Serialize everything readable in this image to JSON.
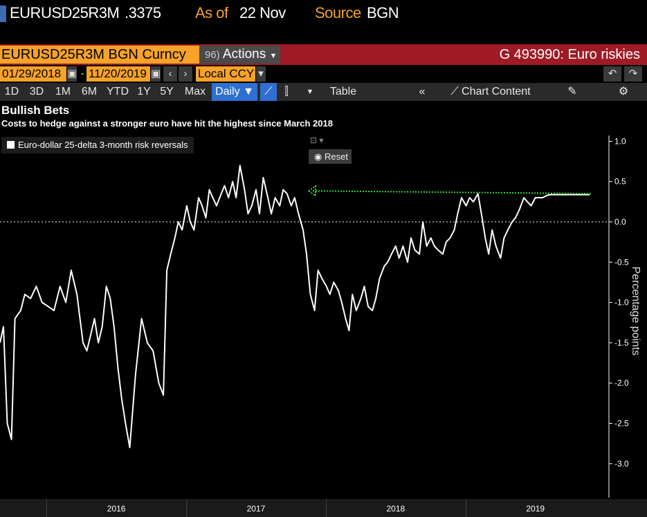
{
  "topbar": {
    "ticker": "EURUSD25R3M",
    "value": ".3375",
    "asof_label": "As of",
    "asof_date": "22 Nov",
    "source_label": "Source",
    "source": "BGN"
  },
  "header": {
    "security": "EURUSD25R3M BGN Curncy",
    "actions_label": "Actions",
    "actions_prefix": "96)",
    "graph_title": "G 493990: Euro riskies"
  },
  "dates": {
    "start": "01/29/2018",
    "end": "11/20/2019",
    "currency": "Local CCY"
  },
  "toolbar": {
    "ranges": [
      "1D",
      "3D",
      "1M",
      "6M",
      "YTD",
      "1Y",
      "5Y",
      "Max"
    ],
    "period": "Daily ▼",
    "table_label": "Table",
    "chart_content_label": "Chart Content",
    "reset_label": "Reset"
  },
  "colors": {
    "orange": "#f7a229",
    "red": "#9e1b25",
    "blue": "#2f6fd3",
    "line": "#ffffff",
    "marker": "#33dd33"
  },
  "chart_data": {
    "type": "line",
    "title": "Bullish Bets",
    "subtitle": "Costs to hedge against a stronger euro have hit the highest since March 2018",
    "ylabel": "Percentage points",
    "xlabel": "",
    "x_ticks": [
      "2016",
      "2017",
      "2018",
      "2019"
    ],
    "ylim": [
      -3.0,
      1.0
    ],
    "y_ticks": [
      1.0,
      0.5,
      0.0,
      -0.5,
      -1.0,
      -1.5,
      -2.0,
      -2.5,
      -3.0
    ],
    "series": [
      {
        "name": "Euro-dollar 25-delta 3-month risk reversals",
        "x": [
          "2015-09-01",
          "2015-09-10",
          "2015-09-20",
          "2015-10-01",
          "2015-10-10",
          "2015-10-25",
          "2015-11-05",
          "2015-11-20",
          "2015-12-05",
          "2015-12-20",
          "2016-01-05",
          "2016-01-20",
          "2016-02-05",
          "2016-02-20",
          "2016-03-05",
          "2016-03-20",
          "2016-04-05",
          "2016-04-15",
          "2016-04-25",
          "2016-05-05",
          "2016-05-15",
          "2016-05-25",
          "2016-06-05",
          "2016-06-15",
          "2016-06-25",
          "2016-07-05",
          "2016-07-15",
          "2016-07-25",
          "2016-08-05",
          "2016-08-20",
          "2016-09-05",
          "2016-09-20",
          "2016-10-05",
          "2016-10-20",
          "2016-11-01",
          "2016-11-10",
          "2016-11-20",
          "2016-12-01",
          "2016-12-10",
          "2016-12-20",
          "2017-01-01",
          "2017-01-10",
          "2017-01-20",
          "2017-02-01",
          "2017-02-10",
          "2017-02-20",
          "2017-03-01",
          "2017-03-10",
          "2017-03-20",
          "2017-04-01",
          "2017-04-10",
          "2017-04-20",
          "2017-05-01",
          "2017-05-10",
          "2017-05-20",
          "2017-06-01",
          "2017-06-10",
          "2017-06-20",
          "2017-07-01",
          "2017-07-10",
          "2017-07-20",
          "2017-08-01",
          "2017-08-10",
          "2017-08-20",
          "2017-09-01",
          "2017-09-10",
          "2017-09-20",
          "2017-10-01",
          "2017-10-10",
          "2017-10-20",
          "2017-11-01",
          "2017-11-10",
          "2017-11-20",
          "2017-12-01",
          "2017-12-10",
          "2017-12-20",
          "2018-01-01",
          "2018-01-10",
          "2018-01-20",
          "2018-02-01",
          "2018-02-10",
          "2018-02-20",
          "2018-03-01",
          "2018-03-10",
          "2018-03-20",
          "2018-04-01",
          "2018-04-10",
          "2018-04-20",
          "2018-05-01",
          "2018-05-10",
          "2018-05-20",
          "2018-06-01",
          "2018-06-10",
          "2018-06-20",
          "2018-07-01",
          "2018-07-10",
          "2018-07-20",
          "2018-08-01",
          "2018-08-10",
          "2018-08-20",
          "2018-09-01",
          "2018-09-10",
          "2018-09-20",
          "2018-10-01",
          "2018-10-10",
          "2018-10-20",
          "2018-11-01",
          "2018-11-10",
          "2018-11-20",
          "2018-12-01",
          "2018-12-10",
          "2018-12-20",
          "2019-01-01",
          "2019-01-10",
          "2019-01-20",
          "2019-02-01",
          "2019-02-10",
          "2019-02-20",
          "2019-03-01",
          "2019-03-10",
          "2019-03-20",
          "2019-04-01",
          "2019-04-10",
          "2019-04-20",
          "2019-05-01",
          "2019-05-10",
          "2019-05-20",
          "2019-06-01",
          "2019-06-10",
          "2019-06-20",
          "2019-07-01",
          "2019-07-10",
          "2019-07-20",
          "2019-08-01",
          "2019-08-10",
          "2019-08-20",
          "2019-09-01",
          "2019-09-10",
          "2019-09-20",
          "2019-10-01",
          "2019-10-10",
          "2019-10-20",
          "2019-11-01",
          "2019-11-10",
          "2019-11-20"
        ],
        "values": [
          -1.5,
          -1.3,
          -2.5,
          -2.7,
          -1.2,
          -1.1,
          -0.9,
          -0.95,
          -0.8,
          -1.0,
          -1.05,
          -1.1,
          -0.8,
          -1.0,
          -0.6,
          -0.9,
          -1.5,
          -1.6,
          -1.4,
          -1.2,
          -1.5,
          -1.3,
          -0.8,
          -0.95,
          -1.3,
          -1.8,
          -2.2,
          -2.5,
          -2.8,
          -1.9,
          -1.2,
          -1.5,
          -1.6,
          -2.0,
          -2.15,
          -0.6,
          -0.4,
          -0.2,
          0.0,
          -0.1,
          0.2,
          0.0,
          -0.1,
          0.3,
          0.2,
          0.05,
          0.4,
          0.3,
          0.2,
          0.35,
          0.45,
          0.3,
          0.5,
          0.3,
          0.7,
          0.4,
          0.1,
          0.2,
          0.4,
          0.1,
          0.55,
          0.3,
          0.1,
          0.3,
          0.2,
          0.4,
          0.35,
          0.2,
          0.3,
          0.1,
          -0.1,
          -0.4,
          -0.9,
          -1.1,
          -0.6,
          -0.7,
          -0.8,
          -0.9,
          -0.75,
          -0.85,
          -1.0,
          -1.2,
          -1.35,
          -0.9,
          -1.1,
          -0.95,
          -0.8,
          -1.05,
          -1.1,
          -0.95,
          -0.7,
          -0.55,
          -0.5,
          -0.4,
          -0.3,
          -0.45,
          -0.3,
          -0.5,
          -0.2,
          -0.35,
          -0.4,
          0.0,
          -0.3,
          -0.2,
          -0.3,
          -0.35,
          -0.4,
          -0.25,
          -0.2,
          -0.1,
          0.1,
          0.3,
          0.2,
          0.3,
          0.25,
          0.35,
          0.1,
          -0.2,
          -0.4,
          -0.1,
          -0.3,
          -0.45,
          -0.2,
          -0.1,
          0.0,
          0.05,
          0.15,
          0.3,
          0.25,
          0.2,
          0.3,
          0.3,
          0.3,
          0.33,
          0.3375,
          0.3375,
          0.3375,
          0.3375,
          0.3375,
          0.3375,
          0.3375,
          0.3375,
          0.3375,
          0.3375,
          0.3375
        ]
      }
    ],
    "annotations": [
      {
        "type": "dotted-hline",
        "value": 0.35,
        "color": "#33dd33"
      }
    ]
  }
}
